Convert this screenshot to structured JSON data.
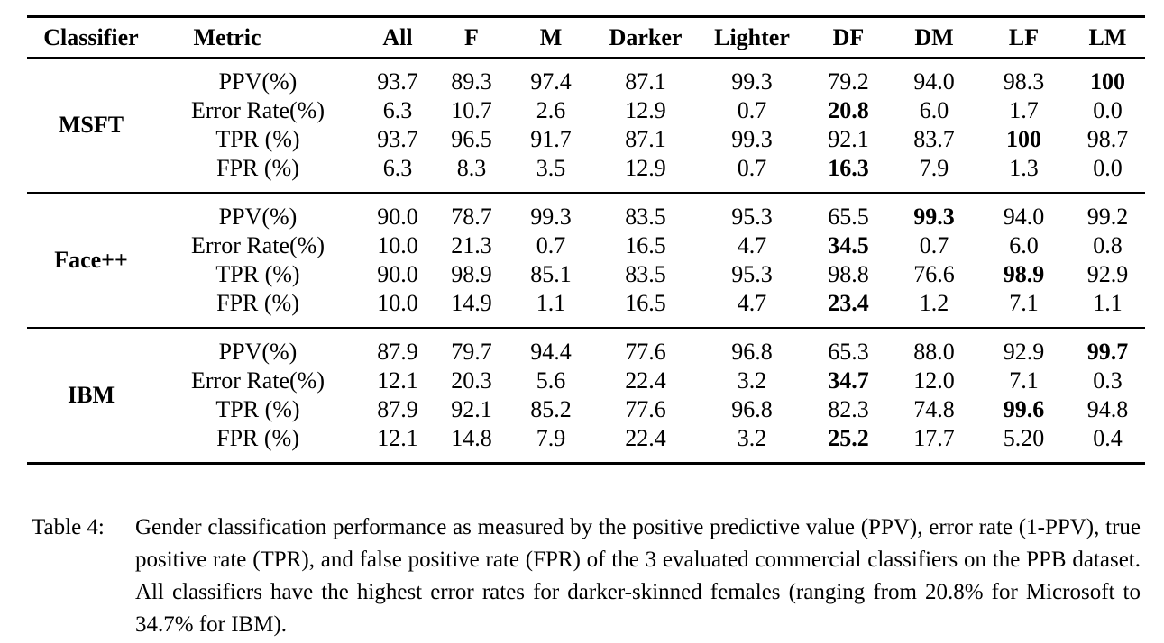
{
  "table": {
    "columns": [
      "Classifier",
      "Metric",
      "All",
      "F",
      "M",
      "Darker",
      "Lighter",
      "DF",
      "DM",
      "LF",
      "LM"
    ],
    "groups": [
      {
        "classifier": "MSFT",
        "rows": [
          {
            "metric": "PPV(%)",
            "values": [
              "93.7",
              "89.3",
              "97.4",
              "87.1",
              "99.3",
              "79.2",
              "94.0",
              "98.3",
              "100"
            ],
            "bold": [
              8
            ]
          },
          {
            "metric": "Error Rate(%)",
            "values": [
              "6.3",
              "10.7",
              "2.6",
              "12.9",
              "0.7",
              "20.8",
              "6.0",
              "1.7",
              "0.0"
            ],
            "bold": [
              5
            ]
          },
          {
            "metric": "TPR (%)",
            "values": [
              "93.7",
              "96.5",
              "91.7",
              "87.1",
              "99.3",
              "92.1",
              "83.7",
              "100",
              "98.7"
            ],
            "bold": [
              7
            ]
          },
          {
            "metric": "FPR (%)",
            "values": [
              "6.3",
              "8.3",
              "3.5",
              "12.9",
              "0.7",
              "16.3",
              "7.9",
              "1.3",
              "0.0"
            ],
            "bold": [
              5
            ]
          }
        ]
      },
      {
        "classifier": "Face++",
        "rows": [
          {
            "metric": "PPV(%)",
            "values": [
              "90.0",
              "78.7",
              "99.3",
              "83.5",
              "95.3",
              "65.5",
              "99.3",
              "94.0",
              "99.2"
            ],
            "bold": [
              6
            ]
          },
          {
            "metric": "Error Rate(%)",
            "values": [
              "10.0",
              "21.3",
              "0.7",
              "16.5",
              "4.7",
              "34.5",
              "0.7",
              "6.0",
              "0.8"
            ],
            "bold": [
              5
            ]
          },
          {
            "metric": "TPR (%)",
            "values": [
              "90.0",
              "98.9",
              "85.1",
              "83.5",
              "95.3",
              "98.8",
              "76.6",
              "98.9",
              "92.9"
            ],
            "bold": [
              7
            ]
          },
          {
            "metric": "FPR (%)",
            "values": [
              "10.0",
              "14.9",
              "1.1",
              "16.5",
              "4.7",
              "23.4",
              "1.2",
              "7.1",
              "1.1"
            ],
            "bold": [
              5
            ]
          }
        ]
      },
      {
        "classifier": "IBM",
        "rows": [
          {
            "metric": "PPV(%)",
            "values": [
              "87.9",
              "79.7",
              "94.4",
              "77.6",
              "96.8",
              "65.3",
              "88.0",
              "92.9",
              "99.7"
            ],
            "bold": [
              8
            ]
          },
          {
            "metric": "Error Rate(%)",
            "values": [
              "12.1",
              "20.3",
              "5.6",
              "22.4",
              "3.2",
              "34.7",
              "12.0",
              "7.1",
              "0.3"
            ],
            "bold": [
              5
            ]
          },
          {
            "metric": "TPR (%)",
            "values": [
              "87.9",
              "92.1",
              "85.2",
              "77.6",
              "96.8",
              "82.3",
              "74.8",
              "99.6",
              "94.8"
            ],
            "bold": [
              7
            ]
          },
          {
            "metric": "FPR (%)",
            "values": [
              "12.1",
              "14.8",
              "7.9",
              "22.4",
              "3.2",
              "25.2",
              "17.7",
              "5.20",
              "0.4"
            ],
            "bold": [
              5
            ]
          }
        ]
      }
    ]
  },
  "caption": {
    "label": "Table 4:",
    "text": "Gender classification performance as measured by the positive predictive value (PPV), error rate (1-PPV), true positive rate (TPR), and false positive rate (FPR) of the 3 evaluated commercial classifiers on the PPB dataset. All classifiers have the highest error rates for darker-skinned females (ranging from 20.8% for Microsoft to 34.7% for IBM)."
  }
}
